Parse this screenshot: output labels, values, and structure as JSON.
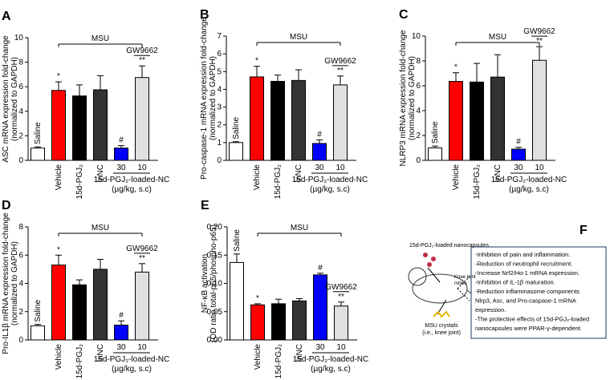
{
  "chart_data": [
    {
      "type": "bar",
      "panel": "A",
      "ylabel": [
        "ASC mRNA expression fold-change",
        "(normalized to GAPDH)"
      ],
      "categories": [
        "Saline",
        "Vehicle",
        "15d-PGJ₂",
        "lnNC",
        "30",
        "10"
      ],
      "values": [
        1.0,
        5.7,
        5.25,
        5.75,
        1.0,
        6.75
      ],
      "errors": [
        0.1,
        0.7,
        0.9,
        1.15,
        0.2,
        0.95
      ],
      "sig_labels": [
        null,
        "*",
        null,
        null,
        "#",
        "**"
      ],
      "colors": [
        "#ffffff",
        "#ff0000",
        "#000000",
        "#333333",
        "#0000ff",
        "#e0e0e0"
      ],
      "ylim": [
        0,
        10
      ],
      "yticks": [
        0,
        2,
        4,
        6,
        8,
        10
      ],
      "bracket_label": "MSU",
      "antagonist_label": "GW9662",
      "group_label": "15d-PGJ₂-loaded-NC",
      "dose_unit": "(µg/kg, s.c)"
    },
    {
      "type": "bar",
      "panel": "B",
      "ylabel": [
        "Pro-caspase-1 mRNA expression fold-change",
        "(normalized to GAPDH)"
      ],
      "categories": [
        "Saline",
        "Vehicle",
        "15d-PGJ₂",
        "lnNC",
        "30",
        "10"
      ],
      "values": [
        1.0,
        4.7,
        4.45,
        4.5,
        0.95,
        4.25
      ],
      "errors": [
        0.05,
        0.6,
        0.35,
        0.6,
        0.2,
        0.5
      ],
      "sig_labels": [
        null,
        "*",
        null,
        null,
        "#",
        "**"
      ],
      "colors": [
        "#ffffff",
        "#ff0000",
        "#000000",
        "#333333",
        "#0000ff",
        "#e0e0e0"
      ],
      "ylim": [
        0,
        7
      ],
      "yticks": [
        0,
        1,
        2,
        3,
        4,
        5,
        6,
        7
      ],
      "bracket_label": "MSU",
      "antagonist_label": "GW9662",
      "group_label": "15d-PGJ₂-loaded-NC",
      "dose_unit": "(µg/kg, s.c)"
    },
    {
      "type": "bar",
      "panel": "C",
      "ylabel": [
        "NLRP3 mRNA expression fold-change",
        "(normalized to GAPDH)"
      ],
      "categories": [
        "Saline",
        "Vehicle",
        "15d-PGJ₂",
        "lnNC",
        "30",
        "10"
      ],
      "values": [
        1.0,
        6.35,
        6.3,
        6.7,
        0.9,
        8.05
      ],
      "errors": [
        0.15,
        0.7,
        1.5,
        1.8,
        0.15,
        1.1
      ],
      "sig_labels": [
        null,
        "*",
        null,
        null,
        "#",
        "**"
      ],
      "colors": [
        "#ffffff",
        "#ff0000",
        "#000000",
        "#333333",
        "#0000ff",
        "#e0e0e0"
      ],
      "ylim": [
        0,
        10
      ],
      "yticks": [
        0,
        2,
        4,
        6,
        8,
        10
      ],
      "bracket_label": "MSU",
      "antagonist_label": "GW9662",
      "group_label": "15d-PGJ₂-loaded-NC",
      "dose_unit": "(µg/kg, s.c)"
    },
    {
      "type": "bar",
      "panel": "D",
      "ylabel": [
        "Pro-IL1β mRNA expression fold-change",
        "(normalized to GAPDH)"
      ],
      "categories": [
        "Saline",
        "Vehicle",
        "15d-PGJ₂",
        "lnNC",
        "30",
        "10"
      ],
      "values": [
        1.0,
        5.3,
        3.9,
        5.0,
        1.05,
        4.8
      ],
      "errors": [
        0.1,
        0.7,
        0.35,
        0.7,
        0.3,
        0.6
      ],
      "sig_labels": [
        null,
        "*",
        null,
        null,
        "#",
        "**"
      ],
      "colors": [
        "#ffffff",
        "#ff0000",
        "#000000",
        "#333333",
        "#0000ff",
        "#e0e0e0"
      ],
      "ylim": [
        0,
        8
      ],
      "yticks": [
        0,
        2,
        4,
        6,
        8
      ],
      "bracket_label": "MSU",
      "antagonist_label": "GW9662",
      "group_label": "15d-PGJ₂-loaded-NC",
      "dose_unit": "(µg/kg, s.c)"
    },
    {
      "type": "bar",
      "panel": "E",
      "ylabel": [
        "NF-κB activation",
        "(OD ratio total-p65/phospho-p65)"
      ],
      "categories": [
        "Saline",
        "Vehicle",
        "15d-PGJ₂",
        "lnNC",
        "30",
        "10"
      ],
      "values": [
        0.137,
        0.062,
        0.064,
        0.069,
        0.115,
        0.06
      ],
      "errors": [
        0.015,
        0.002,
        0.008,
        0.004,
        0.003,
        0.007
      ],
      "sig_labels": [
        null,
        "*",
        null,
        null,
        "#",
        "**"
      ],
      "colors": [
        "#ffffff",
        "#ff0000",
        "#000000",
        "#333333",
        "#0000ff",
        "#e0e0e0"
      ],
      "ylim": [
        0,
        0.2
      ],
      "yticks": [
        {
          "value": 0,
          "label": "0.00"
        },
        {
          "value": 0.05,
          "label": "0.05"
        },
        {
          "value": 0.1,
          "label": "0.10"
        },
        {
          "value": 0.15,
          "label": "0.15"
        },
        {
          "value": 0.2,
          "label": "0.20"
        }
      ],
      "bracket_label": "MSU",
      "antagonist_label": "GW9662",
      "group_label": "15d-PGJ₂-loaded-NC",
      "dose_unit": "(µg/kg, s.c)"
    }
  ],
  "diagram": {
    "panel": "F",
    "nanocapsule_label": "15d-PGJ₂-loaded nanocapsules",
    "site_label": [
      "Knee joint",
      "milieu"
    ],
    "crystal_label": [
      "MSU crystals",
      "(i.e., knee joint)"
    ],
    "effects": [
      "-Inhibition of pain and inflammation.",
      "-Reduction of neutrophil recruitment.",
      "-Increase Nrf2/Ho-1 mRNA expression.",
      "-Inhibition of IL-1β maturation.",
      "-Reduction inflammasome components",
      "Nlrp3, Asc, and Pro-caspase-1 mRNA",
      "expression.",
      "-The protective effects  of 15d-PGJ₂-loaded",
      "nanocapsules were PPAR-γ-dependent."
    ]
  }
}
